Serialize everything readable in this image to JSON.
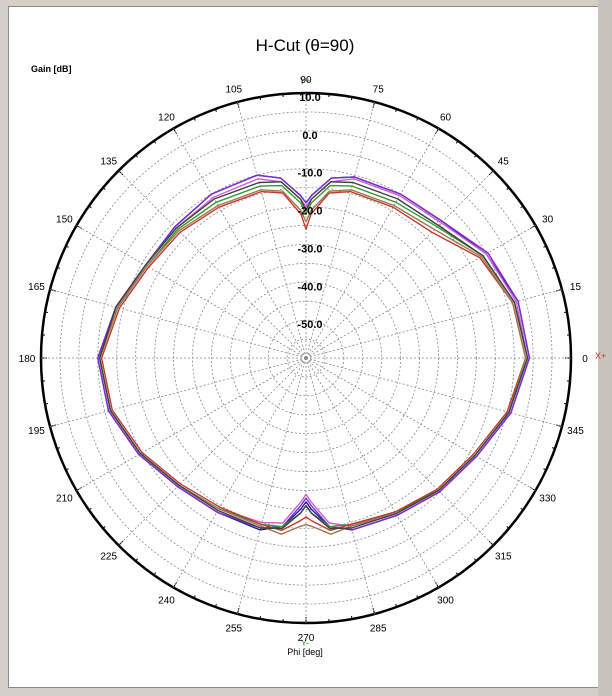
{
  "chart_data": {
    "type": "polar-line",
    "title": "H-Cut (θ=90)",
    "ylabel": "Gain [dB]",
    "xlabel": "Phi [deg]",
    "axis_markers": {
      "y_plus": "Y+",
      "y_minus": "Y-",
      "x_plus": "X+"
    },
    "radial_ticks": [
      "10.0",
      "0.0",
      "-10.0",
      "-20.0",
      "-30.0",
      "-40.0",
      "-50.0"
    ],
    "rlim": [
      -60,
      10
    ],
    "angular_ticks": [
      0,
      15,
      30,
      45,
      60,
      75,
      90,
      105,
      120,
      135,
      150,
      165,
      180,
      195,
      210,
      225,
      240,
      255,
      270,
      285,
      300,
      315,
      330,
      345
    ],
    "grid": true,
    "phi": [
      0,
      15,
      30,
      45,
      60,
      75,
      82,
      88,
      90,
      92,
      98,
      105,
      120,
      135,
      150,
      165,
      180,
      195,
      210,
      225,
      240,
      255,
      262,
      268,
      270,
      272,
      278,
      285,
      300,
      315,
      330,
      345
    ],
    "series": [
      {
        "color": "#1a1aa8",
        "values": [
          -1,
          -2,
          -5,
          -9,
          -10,
          -10.5,
          -12,
          -17,
          -19,
          -17,
          -12,
          -10,
          -10,
          -11,
          -11,
          -8,
          -5,
          -6,
          -9,
          -12,
          -13,
          -13,
          -15,
          -20,
          -22,
          -20,
          -15,
          -13,
          -12,
          -10,
          -8,
          -4
        ]
      },
      {
        "color": "#7b2fd0",
        "values": [
          -1,
          -2,
          -4.5,
          -9,
          -10,
          -10.5,
          -12,
          -17,
          -19,
          -17,
          -12,
          -10,
          -10,
          -11,
          -11,
          -8,
          -5,
          -6,
          -9,
          -12,
          -13,
          -13.5,
          -15,
          -21,
          -23,
          -21,
          -15,
          -13,
          -12,
          -10,
          -8,
          -4
        ]
      },
      {
        "color": "#d060d0",
        "values": [
          -1.5,
          -2.5,
          -5,
          -9.5,
          -10.5,
          -11,
          -13,
          -18,
          -20,
          -18,
          -13,
          -11,
          -11,
          -11.5,
          -11,
          -8.5,
          -5.5,
          -6.5,
          -9.5,
          -12.5,
          -14,
          -15,
          -16,
          -22,
          -24,
          -22,
          -16,
          -14,
          -13,
          -10.5,
          -8.5,
          -4.5
        ]
      },
      {
        "color": "#2e9b2e",
        "values": [
          -1.5,
          -3,
          -6,
          -11,
          -12.5,
          -13,
          -14,
          -19,
          -22,
          -19,
          -14,
          -13,
          -12.5,
          -12,
          -11.5,
          -8.5,
          -5.5,
          -6.5,
          -9.5,
          -12.5,
          -14,
          -14.5,
          -15,
          -19,
          -21,
          -19,
          -15,
          -14.5,
          -13,
          -10.5,
          -8.5,
          -4.5
        ]
      },
      {
        "color": "#c0392b",
        "values": [
          -2,
          -3.5,
          -7,
          -13,
          -14,
          -14.5,
          -16,
          -22,
          -26,
          -22,
          -16,
          -14.5,
          -14,
          -13,
          -12,
          -9,
          -6,
          -7,
          -10,
          -13,
          -14.5,
          -14.5,
          -14,
          -17,
          -18,
          -17,
          -14,
          -14.5,
          -13,
          -11,
          -9,
          -5
        ]
      },
      {
        "color": "#a07850",
        "values": [
          -2,
          -3.5,
          -6.5,
          -12,
          -13.5,
          -14,
          -15.5,
          -21,
          -24,
          -21,
          -15.5,
          -14,
          -13.5,
          -12.5,
          -11.5,
          -8.5,
          -5.5,
          -6.5,
          -9.5,
          -12.5,
          -14,
          -14,
          -13,
          -15.5,
          -16,
          -15.5,
          -13,
          -14,
          -12.5,
          -10.5,
          -8.5,
          -4.5
        ]
      },
      {
        "color": "#404040",
        "values": [
          -1.5,
          -3,
          -6,
          -10.5,
          -11.5,
          -12,
          -13,
          -18,
          -21,
          -18,
          -13,
          -12,
          -11.5,
          -11.5,
          -11,
          -8,
          -5.5,
          -6.5,
          -9.5,
          -12.5,
          -13.5,
          -13.5,
          -14.5,
          -19,
          -21,
          -19,
          -14.5,
          -13.5,
          -12.5,
          -10.5,
          -8.5,
          -4.5
        ]
      }
    ]
  }
}
